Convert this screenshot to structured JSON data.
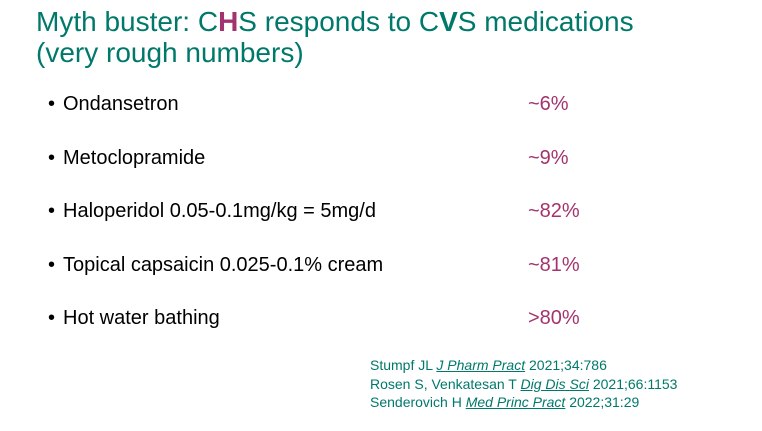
{
  "title": {
    "line1_prefix": "Myth buster:  C",
    "line1_h": "H",
    "line1_mid": "S responds to C",
    "line1_v": "V",
    "line1_suffix": "S medications",
    "line2": "(very rough numbers)"
  },
  "bullet_marker": "•",
  "bullets": [
    {
      "text": "Ondansetron",
      "value": "~6%"
    },
    {
      "text": "Metoclopramide",
      "value": "~9%"
    },
    {
      "text": "Haloperidol 0.05-0.1mg/kg = 5mg/d",
      "value": "~82%"
    },
    {
      "text": "Topical capsaicin 0.025-0.1% cream",
      "value": "~81%"
    },
    {
      "text": "Hot water bathing",
      "value": ">80%"
    }
  ],
  "references": [
    {
      "authors": "Stumpf JL ",
      "journal": "J Pharm Pract",
      "citation": "  2021;34:786"
    },
    {
      "authors": "Rosen S, Venkatesan T ",
      "journal": "Dig Dis Sci",
      "citation": " 2021;66:1153"
    },
    {
      "authors": "Senderovich H ",
      "journal": "Med Princ Pract",
      "citation": " 2022;31:29"
    }
  ],
  "colors": {
    "title": "#00796b",
    "accent": "#a3336e",
    "text": "#000000"
  }
}
